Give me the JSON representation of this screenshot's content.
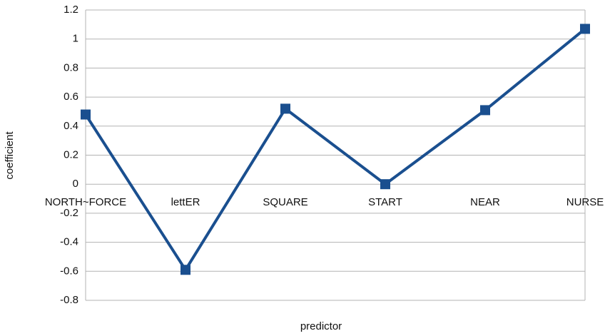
{
  "chart_data": {
    "type": "line",
    "x_label": "predictor",
    "y_label": "coefficient",
    "categories": [
      "NORTH~FORCE",
      "lettER",
      "SQUARE",
      "START",
      "NEAR",
      "NURSE"
    ],
    "series": [
      {
        "name": "coefficient",
        "color": "#1a4f8f",
        "values": [
          0.48,
          -0.59,
          0.52,
          0.0,
          0.51,
          1.07
        ]
      }
    ],
    "ylim": [
      -0.8,
      1.2
    ],
    "yticks": [
      -0.8,
      -0.6,
      -0.4,
      -0.2,
      0,
      0.2,
      0.4,
      0.6,
      0.8,
      1,
      1.2
    ],
    "grid": true
  }
}
